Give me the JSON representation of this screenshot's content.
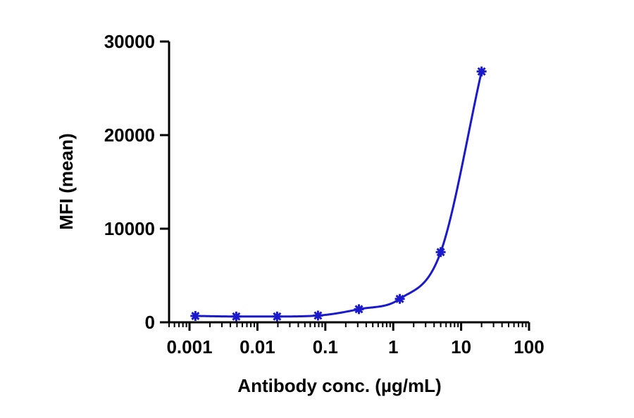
{
  "chart_data": {
    "type": "scatter",
    "title": "",
    "xlabel": "Antibody conc. (µg/mL)",
    "ylabel": "MFI (mean)",
    "x_scale": "log",
    "xlim": [
      0.0005,
      100
    ],
    "ylim": [
      0,
      30000
    ],
    "x_ticks": [
      {
        "value": 0.001,
        "label": "0.001"
      },
      {
        "value": 0.01,
        "label": "0.01"
      },
      {
        "value": 0.1,
        "label": "0.1"
      },
      {
        "value": 1,
        "label": "1"
      },
      {
        "value": 10,
        "label": "10"
      },
      {
        "value": 100,
        "label": "100"
      }
    ],
    "y_ticks": [
      {
        "value": 0,
        "label": "0"
      },
      {
        "value": 10000,
        "label": "10000"
      },
      {
        "value": 20000,
        "label": "20000"
      },
      {
        "value": 30000,
        "label": "30000"
      }
    ],
    "grid": false,
    "legend": "none",
    "series": [
      {
        "color": "#1a1acc",
        "marker": "asterisk",
        "fit_line": true,
        "points": [
          {
            "x": 0.00122,
            "y": 680
          },
          {
            "x": 0.00488,
            "y": 620
          },
          {
            "x": 0.0195,
            "y": 620
          },
          {
            "x": 0.078,
            "y": 720
          },
          {
            "x": 0.3125,
            "y": 1400
          },
          {
            "x": 1.25,
            "y": 2500
          },
          {
            "x": 5,
            "y": 7500
          },
          {
            "x": 20,
            "y": 26800
          }
        ]
      }
    ]
  }
}
